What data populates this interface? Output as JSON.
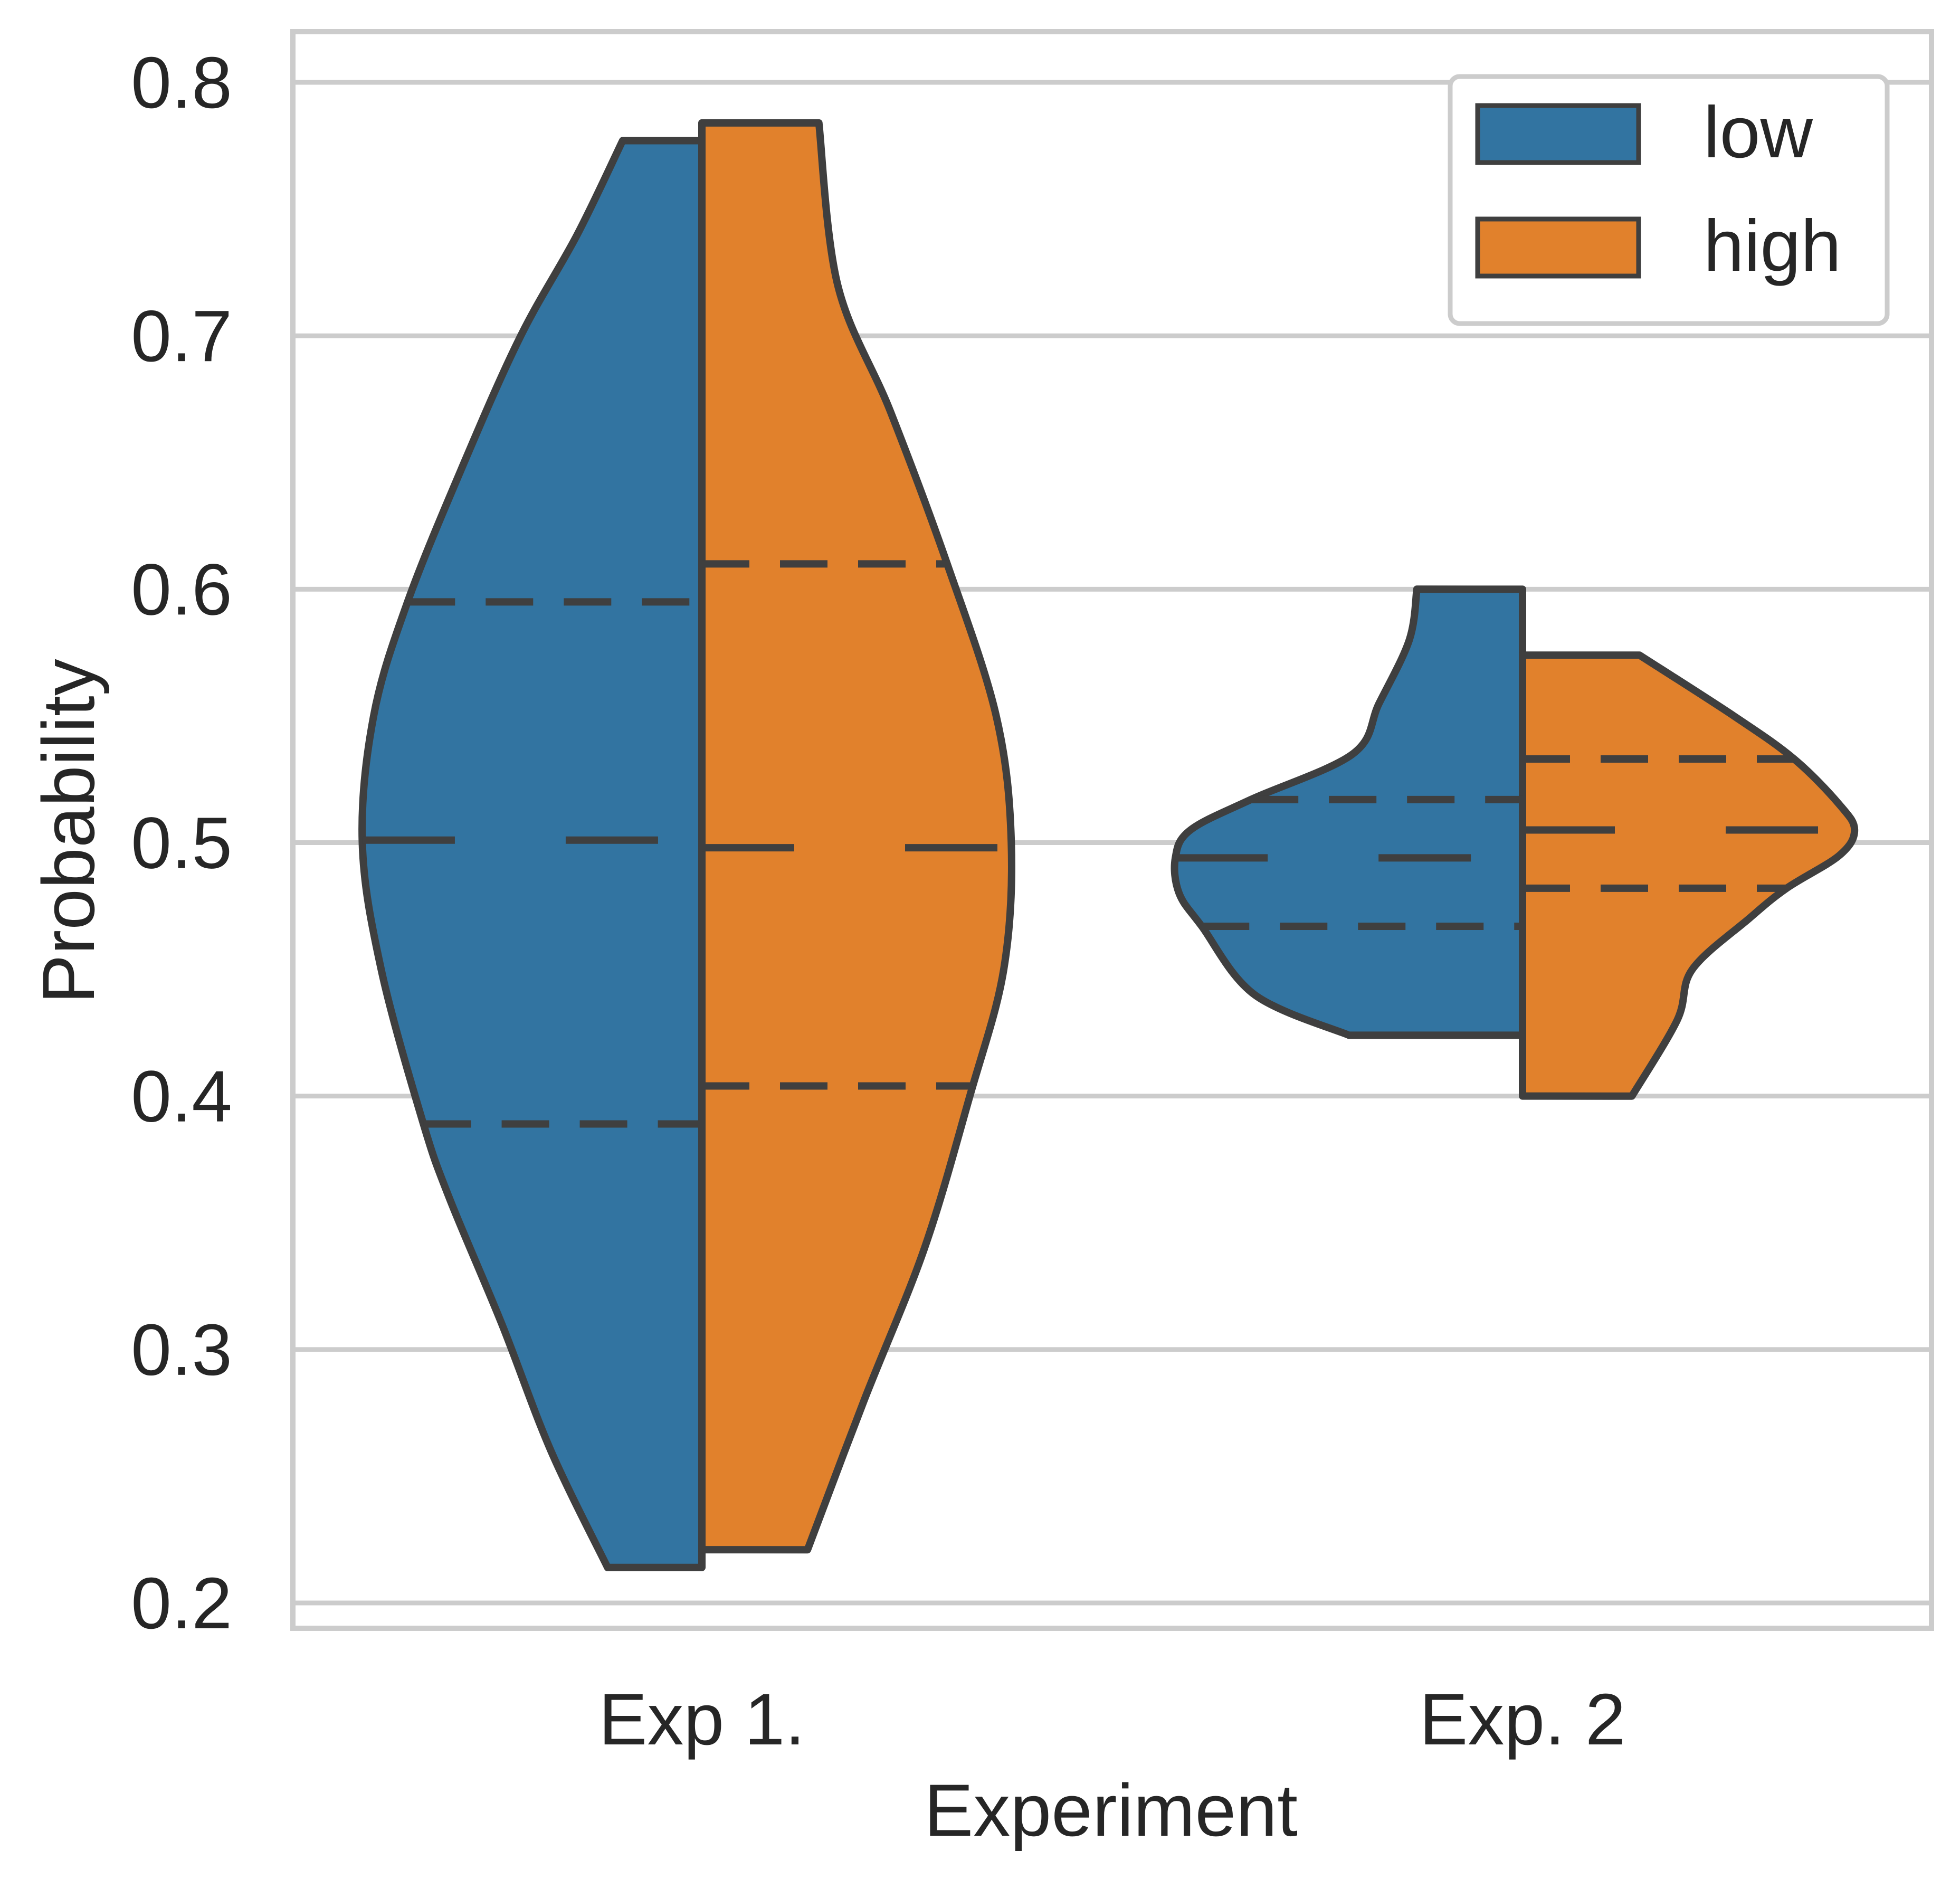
{
  "chart_data": {
    "type": "violin",
    "title": "",
    "xlabel": "Experiment",
    "ylabel": "Probability",
    "categories": [
      "Exp 1.",
      "Exp. 2"
    ],
    "ylim": [
      0.19,
      0.82
    ],
    "yticks": [
      0.2,
      0.3,
      0.4,
      0.5,
      0.6,
      0.7,
      0.8
    ],
    "ytick_labels": [
      "0.2",
      "0.3",
      "0.4",
      "0.5",
      "0.6",
      "0.7",
      "0.8"
    ],
    "grid": true,
    "legend": {
      "position": "top-right"
    },
    "split": true,
    "inner": "quartile",
    "colors": {
      "low": "#3274a1",
      "high": "#e1812c",
      "edge": "#3f3f3f",
      "grid": "#cccccc"
    },
    "series": [
      {
        "name": "low",
        "violins": [
          {
            "category": "Exp 1.",
            "min": 0.214,
            "max": 0.777,
            "q1": 0.389,
            "median": 0.501,
            "q3": 0.595,
            "density": [
              [
                0.214,
                0.25
              ],
              [
                0.26,
                0.4
              ],
              [
                0.31,
                0.53
              ],
              [
                0.36,
                0.67
              ],
              [
                0.39,
                0.74
              ],
              [
                0.45,
                0.85
              ],
              [
                0.5,
                0.9
              ],
              [
                0.55,
                0.87
              ],
              [
                0.595,
                0.78
              ],
              [
                0.65,
                0.63
              ],
              [
                0.7,
                0.48
              ],
              [
                0.74,
                0.33
              ],
              [
                0.777,
                0.21
              ]
            ]
          },
          {
            "category": "Exp. 2",
            "min": 0.424,
            "max": 0.6,
            "q1": 0.467,
            "median": 0.494,
            "q3": 0.517,
            "density": [
              [
                0.424,
                0.46
              ],
              [
                0.44,
                0.71
              ],
              [
                0.467,
                0.85
              ],
              [
                0.48,
                0.91
              ],
              [
                0.494,
                0.92
              ],
              [
                0.505,
                0.88
              ],
              [
                0.517,
                0.72
              ],
              [
                0.535,
                0.45
              ],
              [
                0.555,
                0.38
              ],
              [
                0.58,
                0.3
              ],
              [
                0.6,
                0.28
              ]
            ]
          }
        ]
      },
      {
        "name": "high",
        "violins": [
          {
            "category": "Exp 1.",
            "min": 0.221,
            "max": 0.784,
            "q1": 0.404,
            "median": 0.498,
            "q3": 0.61,
            "density": [
              [
                0.221,
                0.28
              ],
              [
                0.28,
                0.43
              ],
              [
                0.34,
                0.59
              ],
              [
                0.4,
                0.71
              ],
              [
                0.45,
                0.8
              ],
              [
                0.5,
                0.82
              ],
              [
                0.55,
                0.78
              ],
              [
                0.61,
                0.65
              ],
              [
                0.67,
                0.5
              ],
              [
                0.72,
                0.36
              ],
              [
                0.784,
                0.31
              ]
            ]
          },
          {
            "category": "Exp. 2",
            "min": 0.4,
            "max": 0.574,
            "q1": 0.482,
            "median": 0.505,
            "q3": 0.533,
            "density": [
              [
                0.4,
                0.29
              ],
              [
                0.43,
                0.41
              ],
              [
                0.45,
                0.45
              ],
              [
                0.47,
                0.6
              ],
              [
                0.482,
                0.7
              ],
              [
                0.495,
                0.84
              ],
              [
                0.505,
                0.88
              ],
              [
                0.515,
                0.84
              ],
              [
                0.533,
                0.72
              ],
              [
                0.55,
                0.56
              ],
              [
                0.574,
                0.31
              ]
            ]
          }
        ]
      }
    ]
  }
}
